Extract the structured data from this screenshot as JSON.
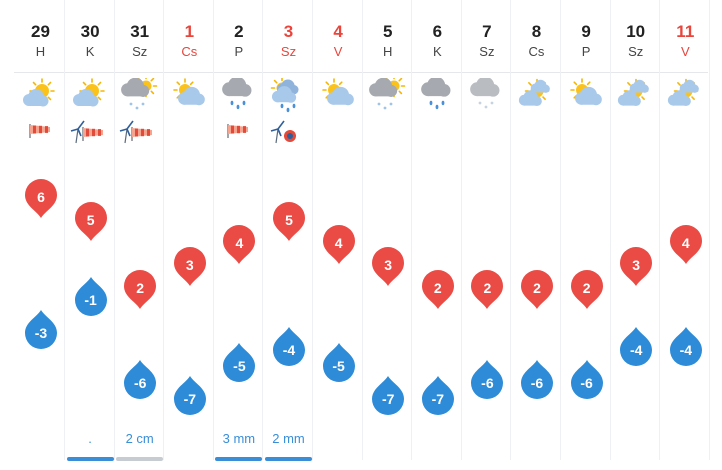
{
  "colors": {
    "max_marker": "#ea4b45",
    "min_marker": "#2d8bd8",
    "weekend_text": "#e8453c",
    "precip_text": "#3a8ed8",
    "rain_bar": "#3a8ed8",
    "snow_bar": "#c7ccd2"
  },
  "days": [
    {
      "num": "29",
      "name": "H",
      "weekend": false,
      "weather": "sun-partly-cloudy-icon",
      "wind": "windsock-icon",
      "max": "6",
      "min": "-3",
      "precip": "",
      "bar": ""
    },
    {
      "num": "30",
      "name": "K",
      "weekend": false,
      "weather": "sun-partly-cloudy-icon",
      "wind": "wind-turbine-windsock-icon",
      "max": "5",
      "min": "-1",
      "precip": ".",
      "bar": "rain"
    },
    {
      "num": "31",
      "name": "Sz",
      "weekend": false,
      "weather": "cloud-sun-snow-icon",
      "wind": "wind-turbine-windsock-icon",
      "max": "2",
      "min": "-6",
      "precip": "2 cm",
      "bar": "snow"
    },
    {
      "num": "1",
      "name": "Cs",
      "weekend": true,
      "weather": "sun-cloud-icon",
      "wind": "",
      "max": "3",
      "min": "-7",
      "precip": "",
      "bar": ""
    },
    {
      "num": "2",
      "name": "P",
      "weekend": false,
      "weather": "cloud-rain-icon",
      "wind": "windsock-icon",
      "max": "4",
      "min": "-5",
      "precip": "3 mm",
      "bar": "rain"
    },
    {
      "num": "3",
      "name": "Sz",
      "weekend": true,
      "weather": "sun-cloud-rain-icon",
      "wind": "wind-turbine-alarm-icon",
      "max": "5",
      "min": "-4",
      "precip": "2 mm",
      "bar": "rain"
    },
    {
      "num": "4",
      "name": "V",
      "weekend": true,
      "weather": "sun-cloud-icon",
      "wind": "",
      "max": "4",
      "min": "-5",
      "precip": "",
      "bar": ""
    },
    {
      "num": "5",
      "name": "H",
      "weekend": false,
      "weather": "cloud-sun-snow-icon",
      "wind": "",
      "max": "3",
      "min": "-7",
      "precip": "",
      "bar": ""
    },
    {
      "num": "6",
      "name": "K",
      "weekend": false,
      "weather": "cloud-rain-icon",
      "wind": "",
      "max": "2",
      "min": "-7",
      "precip": "",
      "bar": ""
    },
    {
      "num": "7",
      "name": "Sz",
      "weekend": false,
      "weather": "cloud-snow-icon",
      "wind": "",
      "max": "2",
      "min": "-6",
      "precip": "",
      "bar": ""
    },
    {
      "num": "8",
      "name": "Cs",
      "weekend": false,
      "weather": "sun-clouds-icon",
      "wind": "",
      "max": "2",
      "min": "-6",
      "precip": "",
      "bar": ""
    },
    {
      "num": "9",
      "name": "P",
      "weekend": false,
      "weather": "sun-cloud-icon",
      "wind": "",
      "max": "2",
      "min": "-6",
      "precip": "",
      "bar": ""
    },
    {
      "num": "10",
      "name": "Sz",
      "weekend": false,
      "weather": "sun-clouds-icon",
      "wind": "",
      "max": "3",
      "min": "-4",
      "precip": "",
      "bar": ""
    },
    {
      "num": "11",
      "name": "V",
      "weekend": true,
      "weather": "sun-clouds-icon",
      "wind": "",
      "max": "4",
      "min": "-4",
      "precip": "",
      "bar": ""
    }
  ]
}
